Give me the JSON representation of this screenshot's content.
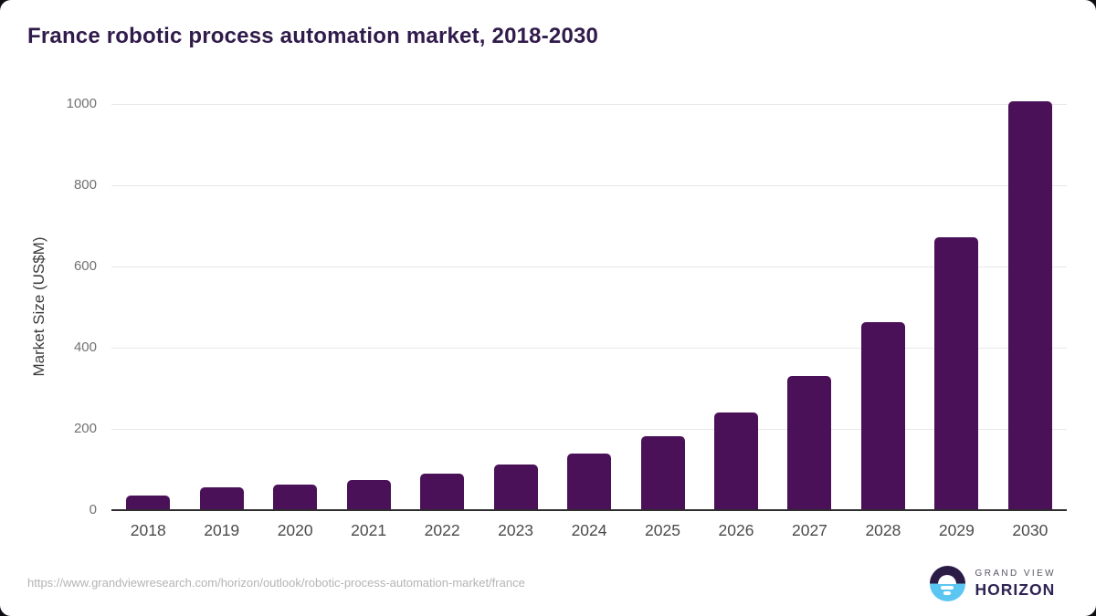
{
  "page": {
    "source_url": "https://www.grandviewresearch.com/horizon/outlook/robotic-process-automation-market/france"
  },
  "logo": {
    "line1": "GRAND VIEW",
    "line2": "HORIZON",
    "icon": "horizon-sun-icon",
    "colors": {
      "dark": "#2b1b47",
      "blue": "#5cc6f2"
    }
  },
  "chart_data": {
    "type": "bar",
    "title": "France robotic process automation market, 2018-2030",
    "categories": [
      "2018",
      "2019",
      "2020",
      "2021",
      "2022",
      "2023",
      "2024",
      "2025",
      "2026",
      "2027",
      "2028",
      "2029",
      "2030"
    ],
    "values": [
      35,
      56,
      63,
      75,
      90,
      112,
      140,
      181,
      240,
      330,
      463,
      672,
      1007
    ],
    "xlabel": "",
    "ylabel": "Market Size (US$M)",
    "ylim": [
      0,
      1000
    ],
    "yticks": [
      0,
      200,
      400,
      600,
      800,
      1000
    ],
    "grid": true,
    "legend": false,
    "bar_color": "#4a1158",
    "title_color": "#301b4b"
  }
}
